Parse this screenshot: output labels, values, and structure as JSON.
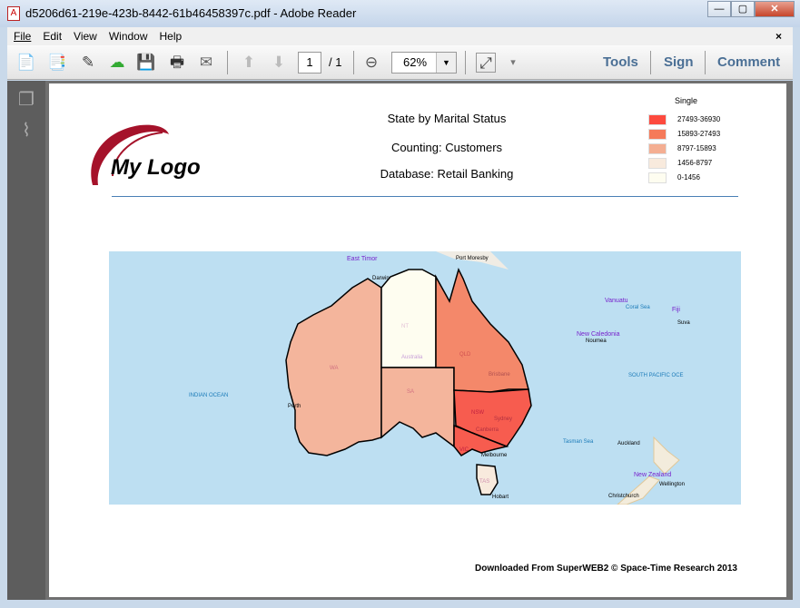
{
  "window": {
    "title": "d5206d61-219e-423b-8442-61b46458397c.pdf - Adobe Reader",
    "minimize": "—",
    "maximize": "▢",
    "close": "✕"
  },
  "menu": {
    "items": [
      "File",
      "Edit",
      "View",
      "Window",
      "Help"
    ],
    "close_doc": "×"
  },
  "toolbar": {
    "page_current": "1",
    "page_total": "/ 1",
    "zoom": "62%",
    "zoom_dropdown": "▼",
    "more": "▾",
    "tools": "Tools",
    "sign": "Sign",
    "comment": "Comment"
  },
  "report": {
    "logo_text": "My Logo",
    "title": "State by Marital Status",
    "counting": "Counting: Customers",
    "database": "Database: Retail Banking",
    "footer": "Downloaded From SuperWEB2 © Space-Time Research 2013"
  },
  "legend": {
    "title": "Single",
    "items": [
      {
        "label": "27493-36930",
        "color": "#fd4a3e"
      },
      {
        "label": "15893-27493",
        "color": "#f57a5a"
      },
      {
        "label": "8797-15893",
        "color": "#f4ae92"
      },
      {
        "label": "1456-8797",
        "color": "#f8eadd"
      },
      {
        "label": "0-1456",
        "color": "#fefdf0"
      }
    ]
  },
  "map": {
    "states": [
      {
        "code": "WA",
        "color": "#f4b59c"
      },
      {
        "code": "NT",
        "color": "#fefdf0"
      },
      {
        "code": "SA",
        "color": "#f4b59c"
      },
      {
        "code": "QLD",
        "color": "#f4886a"
      },
      {
        "code": "NSW",
        "color": "#f75c4f"
      },
      {
        "code": "VIC",
        "color": "#f75c4f"
      },
      {
        "code": "TAS",
        "color": "#f8eadd"
      }
    ],
    "labels": {
      "east_timor": "East Timor",
      "darwin": "Darwin",
      "australia": "Australia",
      "indian_ocean": "INDIAN OCEAN",
      "perth": "Perth",
      "port_moresby": "Port Moresby",
      "coral_sea": "Coral Sea",
      "vanuatu": "Vanuatu",
      "fiji": "Fiji",
      "suva": "Suva",
      "new_caledonia": "New Caledonia",
      "noumea": "Noumea",
      "south_pacific": "SOUTH PACIFIC OCE",
      "brisbane": "Brisbane",
      "sydney": "Sydney",
      "canberra": "Canberra",
      "tasman_sea": "Tasman Sea",
      "auckland": "Auckland",
      "new_zealand": "New Zealand",
      "wellington": "Wellington",
      "christchurch": "Christchurch",
      "hobart": "Hobart",
      "melbourne": "Melbourne"
    }
  }
}
